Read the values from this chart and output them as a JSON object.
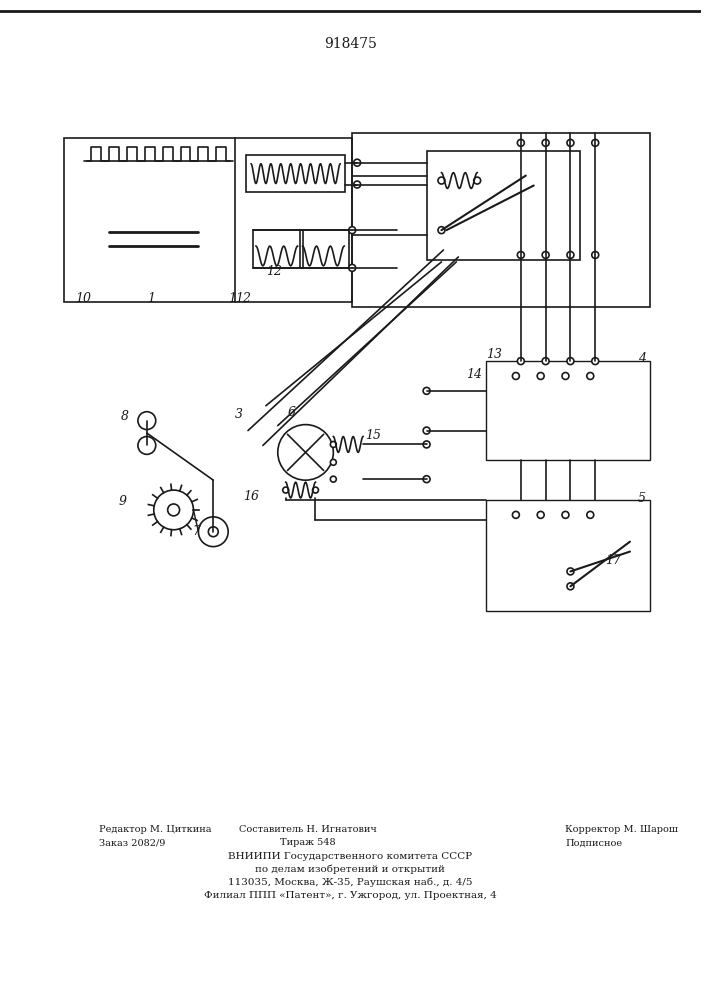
{
  "title": "918475",
  "background": "#ffffff",
  "line_color": "#1a1a1a",
  "lw": 1.2,
  "footer": [
    [
      100,
      163,
      "Редактор М. Циткина",
      7,
      "left"
    ],
    [
      310,
      163,
      "Составитель Н. Игнатович",
      7,
      "center"
    ],
    [
      570,
      163,
      "Корректор М. Шарош",
      7,
      "left"
    ],
    [
      100,
      150,
      "Заказ 2082/9",
      7,
      "left"
    ],
    [
      310,
      150,
      "Тираж 548",
      7,
      "center"
    ],
    [
      570,
      150,
      "Подписное",
      7,
      "left"
    ],
    [
      353,
      136,
      "ВНИИПИ Государственного комитета СССР",
      7.5,
      "center"
    ],
    [
      353,
      123,
      "по делам изобретений и открытий",
      7.5,
      "center"
    ],
    [
      353,
      110,
      "113035, Москва, Ж-35, Раушская наб., д. 4/5",
      7.5,
      "center"
    ],
    [
      353,
      97,
      "Филиал ППП «Патент», г. Ужгород, ул. Проектная, 4",
      7.5,
      "center"
    ]
  ]
}
